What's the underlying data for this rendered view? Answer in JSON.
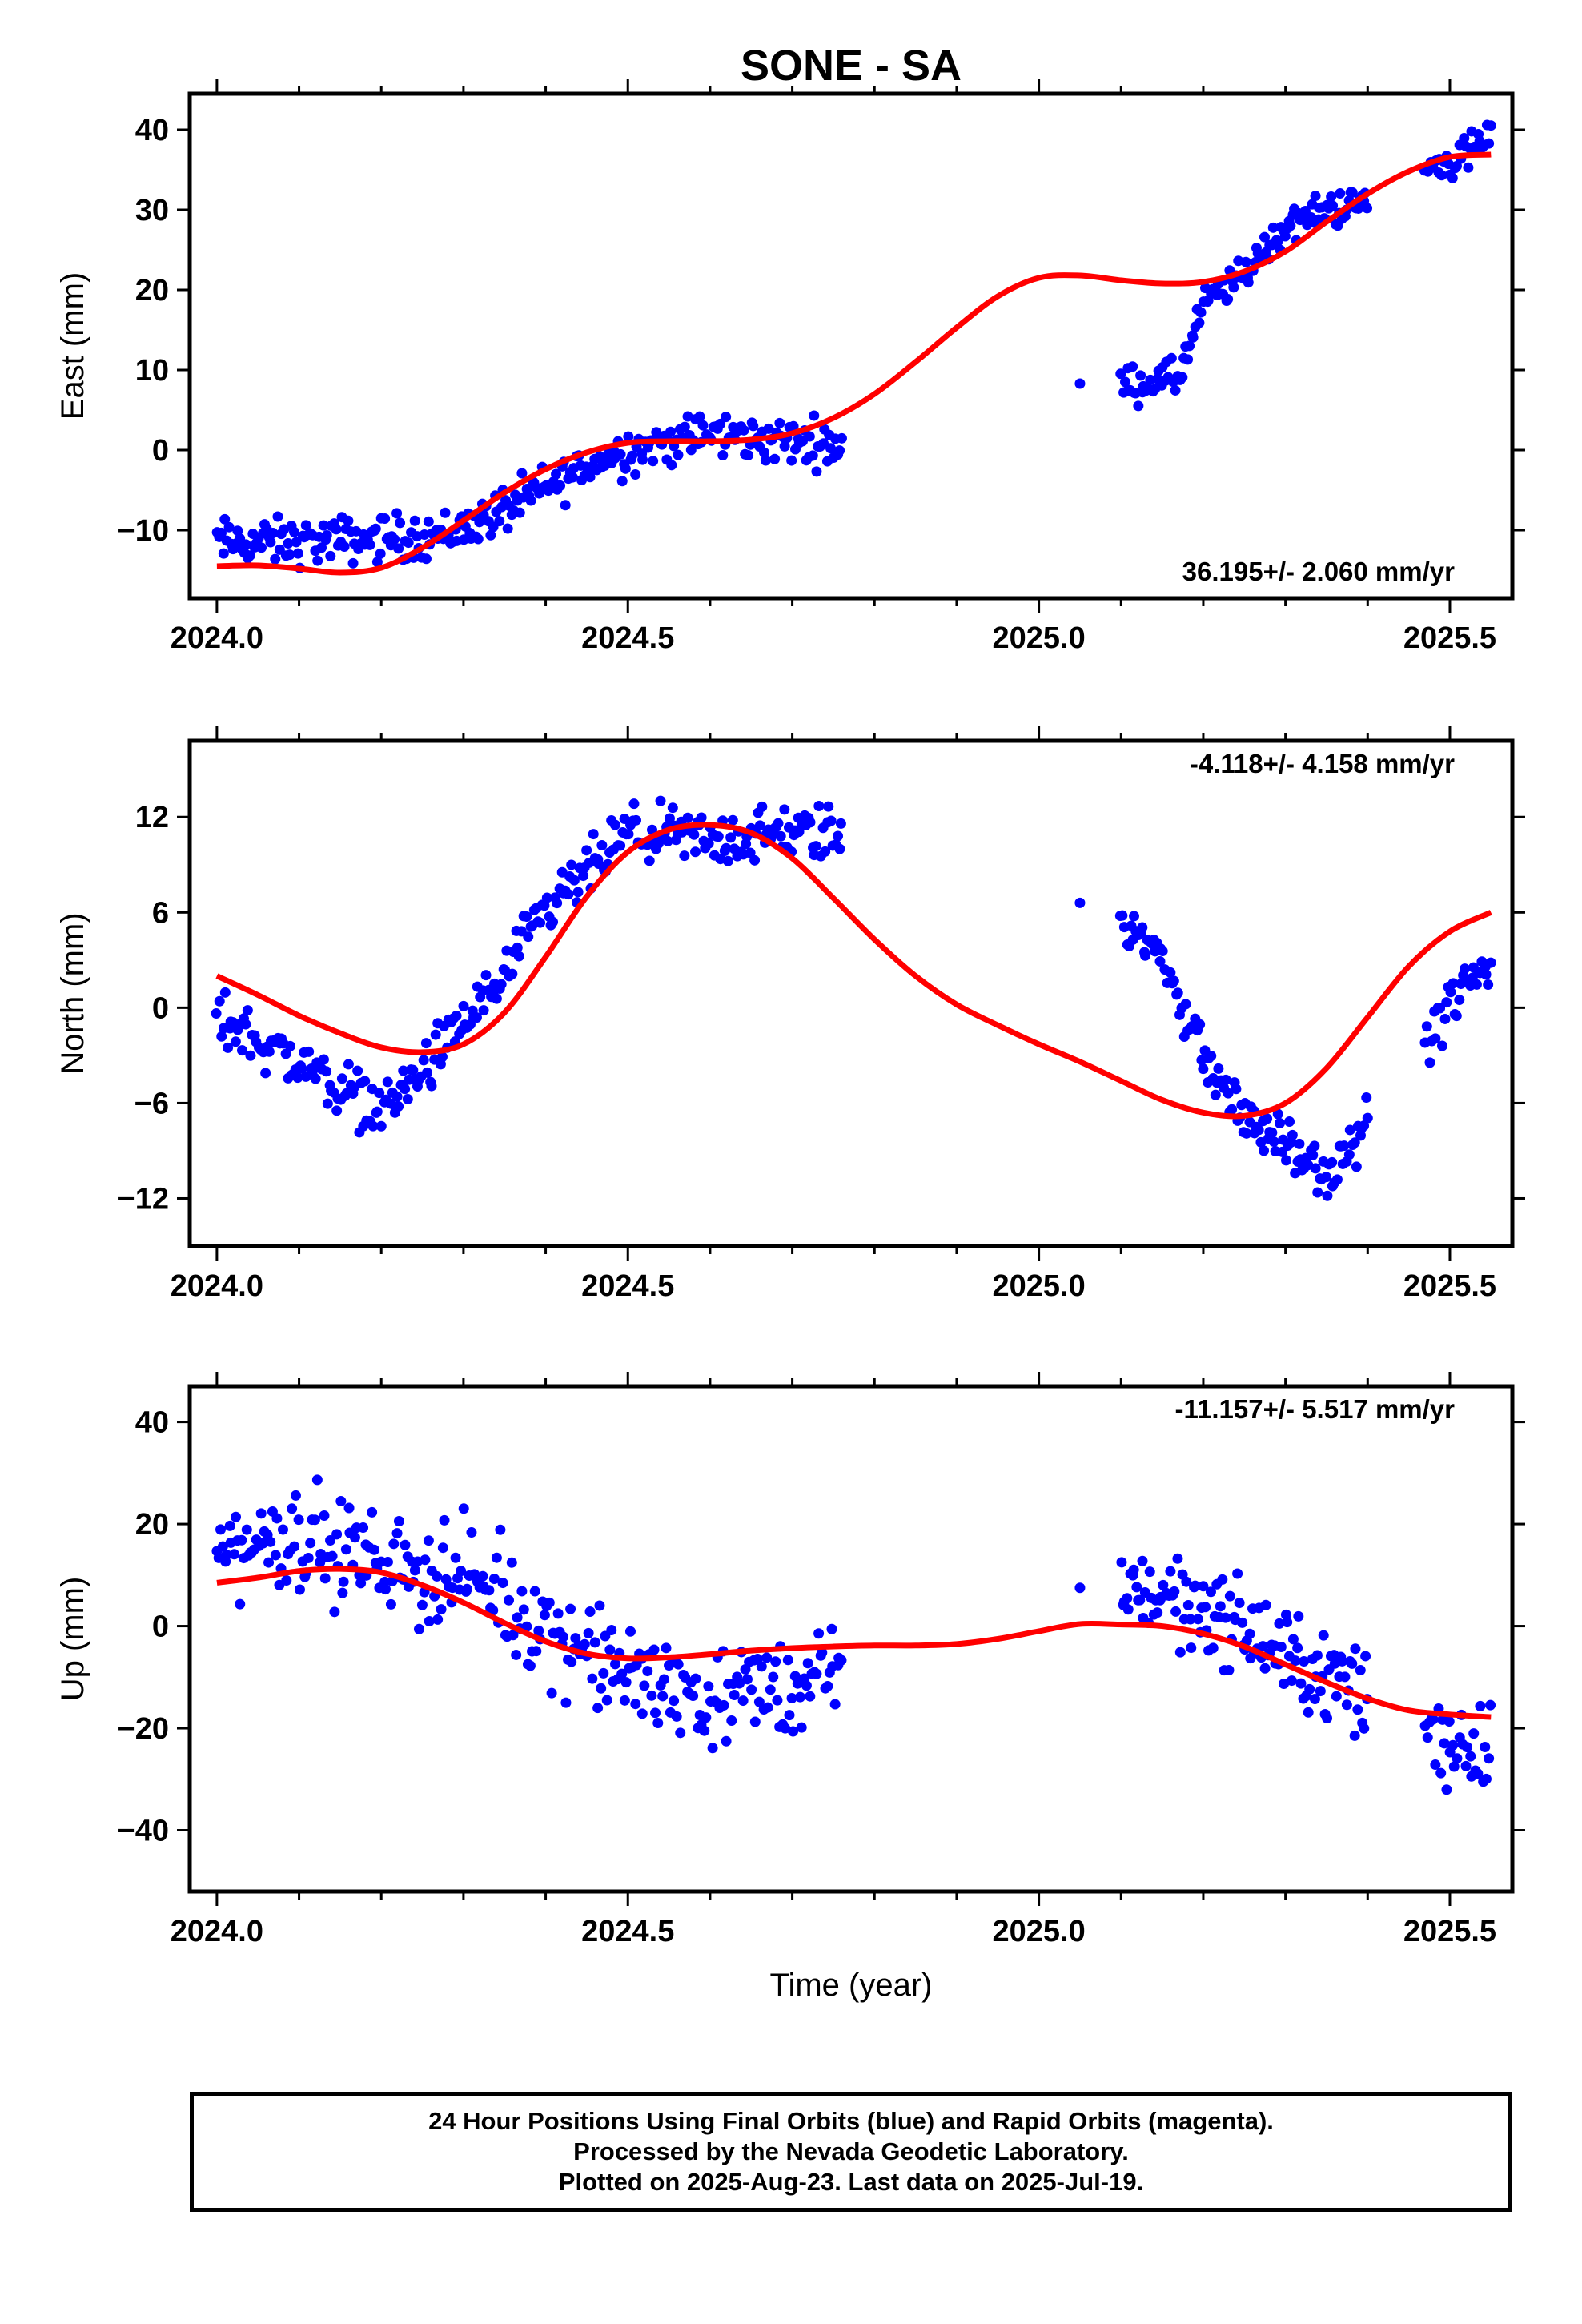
{
  "title": "SONE - SA",
  "xlabel": "Time (year)",
  "colors": {
    "final_orbits": "#0000ff",
    "fit": "#ff0000",
    "frame": "#000000"
  },
  "footer": {
    "line1": "24 Hour Positions Using Final Orbits (blue) and Rapid Orbits (magenta).",
    "line2": "Processed by the Nevada Geodetic Laboratory.",
    "line3": "Plotted on 2025-Aug-23. Last data on 2025-Jul-19."
  },
  "chart_data": [
    {
      "type": "scatter",
      "ylabel": "East (mm)",
      "xlim": [
        2023.967,
        2025.576
      ],
      "ylim": [
        -18.5,
        44.5
      ],
      "xticks": [
        2024.0,
        2024.5,
        2025.0,
        2025.5
      ],
      "xtick_labels": [
        "2024.0",
        "2024.5",
        "2025.0",
        "2025.5"
      ],
      "yticks": [
        -10,
        0,
        10,
        20,
        30,
        40
      ],
      "ytick_labels": [
        "−10",
        "0",
        "10",
        "20",
        "30",
        "40"
      ],
      "rate_label": "36.195+/- 2.060 mm/yr",
      "rate_position": "bottom-right",
      "series": [
        {
          "kind": "points",
          "color": "#0000ff",
          "segments": [
            {
              "x0": 2024.0,
              "x1": 2024.76,
              "n": 300,
              "anchors": [
                [
                  2024.0,
                  -11.5
                ],
                [
                  2024.1,
                  -11.5
                ],
                [
                  2024.2,
                  -11.0
                ],
                [
                  2024.28,
                  -10.5
                ],
                [
                  2024.35,
                  -7.5
                ],
                [
                  2024.45,
                  -2.0
                ],
                [
                  2024.5,
                  0.0
                ],
                [
                  2024.6,
                  2.0
                ],
                [
                  2024.7,
                  1.0
                ],
                [
                  2024.76,
                  1.0
                ]
              ],
              "spread": 2.6
            },
            {
              "x0": 2025.05,
              "x1": 2025.05,
              "n": 1,
              "anchors": [
                [
                  2025.05,
                  8.3
                ]
              ],
              "spread": 0
            },
            {
              "x0": 2025.1,
              "x1": 2025.4,
              "n": 130,
              "anchors": [
                [
                  2025.1,
                  8.0
                ],
                [
                  2025.17,
                  9.0
                ],
                [
                  2025.2,
                  18.0
                ],
                [
                  2025.25,
                  22.0
                ],
                [
                  2025.3,
                  28.0
                ],
                [
                  2025.35,
                  30.0
                ],
                [
                  2025.4,
                  31.0
                ]
              ],
              "spread": 2.0
            },
            {
              "x0": 2025.47,
              "x1": 2025.55,
              "n": 32,
              "anchors": [
                [
                  2025.47,
                  35.0
                ],
                [
                  2025.5,
                  36.0
                ],
                [
                  2025.55,
                  39.0
                ]
              ],
              "spread": 2.2
            }
          ]
        },
        {
          "kind": "line",
          "color": "#ff0000",
          "x": [
            2024.0,
            2024.05,
            2024.1,
            2024.15,
            2024.2,
            2024.25,
            2024.3,
            2024.35,
            2024.4,
            2024.45,
            2024.5,
            2024.55,
            2024.6,
            2024.65,
            2024.7,
            2024.75,
            2024.8,
            2024.85,
            2024.9,
            2024.95,
            2025.0,
            2025.05,
            2025.1,
            2025.15,
            2025.2,
            2025.25,
            2025.3,
            2025.35,
            2025.4,
            2025.45,
            2025.5,
            2025.55
          ],
          "y": [
            -14.5,
            -14.4,
            -14.8,
            -15.3,
            -14.7,
            -12.2,
            -8.8,
            -5.3,
            -2.4,
            -0.3,
            0.9,
            1.1,
            1.1,
            1.3,
            2.1,
            4.0,
            7.0,
            11.0,
            15.3,
            19.2,
            21.5,
            21.8,
            21.2,
            20.8,
            21.0,
            22.3,
            24.8,
            28.5,
            32.0,
            34.8,
            36.6,
            36.9
          ]
        }
      ]
    },
    {
      "type": "scatter",
      "ylabel": "North (mm)",
      "xlim": [
        2023.967,
        2025.576
      ],
      "ylim": [
        -15.0,
        16.8
      ],
      "xticks": [
        2024.0,
        2024.5,
        2025.0,
        2025.5
      ],
      "xtick_labels": [
        "2024.0",
        "2024.5",
        "2025.0",
        "2025.5"
      ],
      "yticks": [
        -12,
        -6,
        0,
        6,
        12
      ],
      "ytick_labels": [
        "−12",
        "−6",
        "0",
        "6",
        "12"
      ],
      "rate_label": "-4.118+/- 4.158 mm/yr",
      "rate_position": "top-right",
      "series": [
        {
          "kind": "points",
          "color": "#0000ff",
          "segments": [
            {
              "x0": 2024.0,
              "x1": 2024.76,
              "n": 300,
              "anchors": [
                [
                  2024.0,
                  -0.5
                ],
                [
                  2024.1,
                  -3.5
                ],
                [
                  2024.2,
                  -6.5
                ],
                [
                  2024.25,
                  -4.0
                ],
                [
                  2024.3,
                  -1.0
                ],
                [
                  2024.35,
                  2.0
                ],
                [
                  2024.4,
                  6.0
                ],
                [
                  2024.45,
                  8.5
                ],
                [
                  2024.5,
                  11.0
                ],
                [
                  2024.6,
                  10.5
                ],
                [
                  2024.7,
                  11.0
                ],
                [
                  2024.76,
                  11.0
                ]
              ],
              "spread": 1.6
            },
            {
              "x0": 2025.05,
              "x1": 2025.05,
              "n": 1,
              "anchors": [
                [
                  2025.05,
                  6.6
                ]
              ],
              "spread": 0
            },
            {
              "x0": 2025.1,
              "x1": 2025.4,
              "n": 130,
              "anchors": [
                [
                  2025.1,
                  6.0
                ],
                [
                  2025.15,
                  3.0
                ],
                [
                  2025.2,
                  -3.0
                ],
                [
                  2025.25,
                  -7.0
                ],
                [
                  2025.3,
                  -8.5
                ],
                [
                  2025.35,
                  -11.0
                ],
                [
                  2025.4,
                  -7.0
                ]
              ],
              "spread": 1.3
            },
            {
              "x0": 2025.47,
              "x1": 2025.55,
              "n": 32,
              "anchors": [
                [
                  2025.47,
                  -2.0
                ],
                [
                  2025.5,
                  0.0
                ],
                [
                  2025.55,
                  3.0
                ]
              ],
              "spread": 1.8
            }
          ]
        },
        {
          "kind": "line",
          "color": "#ff0000",
          "x": [
            2024.0,
            2024.05,
            2024.1,
            2024.15,
            2024.2,
            2024.25,
            2024.3,
            2024.35,
            2024.4,
            2024.45,
            2024.5,
            2024.55,
            2024.6,
            2024.65,
            2024.7,
            2024.75,
            2024.8,
            2024.85,
            2024.9,
            2024.95,
            2025.0,
            2025.05,
            2025.1,
            2025.15,
            2025.2,
            2025.25,
            2025.3,
            2025.35,
            2025.4,
            2025.45,
            2025.5,
            2025.55
          ],
          "y": [
            2.0,
            0.8,
            -0.5,
            -1.6,
            -2.5,
            -2.8,
            -2.3,
            -0.3,
            3.2,
            7.0,
            9.8,
            11.2,
            11.5,
            11.0,
            9.4,
            6.9,
            4.3,
            2.0,
            0.2,
            -1.1,
            -2.3,
            -3.4,
            -4.6,
            -5.8,
            -6.6,
            -6.8,
            -6.0,
            -3.8,
            -0.6,
            2.6,
            4.8,
            6.0
          ]
        }
      ]
    },
    {
      "type": "scatter",
      "ylabel": "Up (mm)",
      "xlim": [
        2023.967,
        2025.576
      ],
      "ylim": [
        -52.0,
        47.0
      ],
      "xticks": [
        2024.0,
        2024.5,
        2025.0,
        2025.5
      ],
      "xtick_labels": [
        "2024.0",
        "2024.5",
        "2025.0",
        "2025.5"
      ],
      "yticks": [
        -40,
        -20,
        0,
        20,
        40
      ],
      "ytick_labels": [
        "−40",
        "−20",
        "0",
        "20",
        "40"
      ],
      "rate_label": "-11.157+/- 5.517 mm/yr",
      "rate_position": "top-right",
      "series": [
        {
          "kind": "points",
          "color": "#0000ff",
          "segments": [
            {
              "x0": 2024.0,
              "x1": 2024.76,
              "n": 300,
              "anchors": [
                [
                  2024.0,
                  15.0
                ],
                [
                  2024.1,
                  18.0
                ],
                [
                  2024.2,
                  12.0
                ],
                [
                  2024.3,
                  10.0
                ],
                [
                  2024.4,
                  0.0
                ],
                [
                  2024.5,
                  -10.0
                ],
                [
                  2024.6,
                  -14.0
                ],
                [
                  2024.7,
                  -12.0
                ],
                [
                  2024.76,
                  -10.0
                ]
              ],
              "spread": 9.0
            },
            {
              "x0": 2025.05,
              "x1": 2025.05,
              "n": 1,
              "anchors": [
                [
                  2025.05,
                  7.5
                ]
              ],
              "spread": 0
            },
            {
              "x0": 2025.1,
              "x1": 2025.4,
              "n": 130,
              "anchors": [
                [
                  2025.1,
                  8.0
                ],
                [
                  2025.2,
                  4.0
                ],
                [
                  2025.3,
                  -6.0
                ],
                [
                  2025.4,
                  -14.0
                ]
              ],
              "spread": 8.0
            },
            {
              "x0": 2025.47,
              "x1": 2025.55,
              "n": 32,
              "anchors": [
                [
                  2025.47,
                  -20.0
                ],
                [
                  2025.5,
                  -22.0
                ],
                [
                  2025.55,
                  -24.0
                ]
              ],
              "spread": 9.0
            }
          ]
        },
        {
          "kind": "line",
          "color": "#ff0000",
          "x": [
            2024.0,
            2024.05,
            2024.1,
            2024.15,
            2024.2,
            2024.25,
            2024.3,
            2024.35,
            2024.4,
            2024.45,
            2024.5,
            2024.55,
            2024.6,
            2024.65,
            2024.7,
            2024.75,
            2024.8,
            2024.85,
            2024.9,
            2024.95,
            2025.0,
            2025.05,
            2025.1,
            2025.15,
            2025.2,
            2025.25,
            2025.3,
            2025.35,
            2025.4,
            2025.45,
            2025.5,
            2025.55
          ],
          "y": [
            8.5,
            9.5,
            10.8,
            11.2,
            10.5,
            8.0,
            4.6,
            0.6,
            -3.0,
            -5.4,
            -6.3,
            -6.1,
            -5.5,
            -4.8,
            -4.3,
            -4.0,
            -3.8,
            -3.8,
            -3.5,
            -2.5,
            -1.0,
            0.4,
            0.3,
            0.0,
            -1.5,
            -4.0,
            -7.5,
            -11.0,
            -14.2,
            -16.5,
            -17.3,
            -17.8
          ]
        }
      ]
    }
  ]
}
